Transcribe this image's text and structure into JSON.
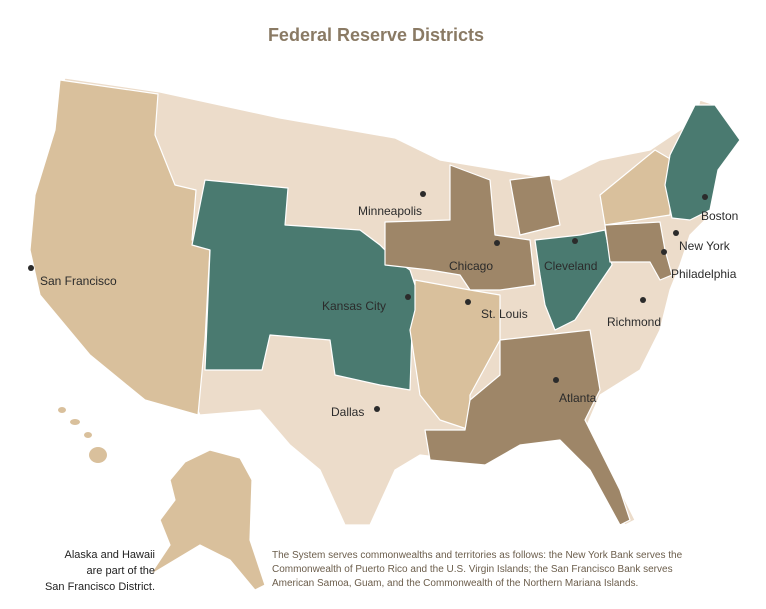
{
  "title": "Federal Reserve Districts",
  "cities": [
    {
      "name": "Boston"
    },
    {
      "name": "New York"
    },
    {
      "name": "Philadelphia"
    },
    {
      "name": "Cleveland"
    },
    {
      "name": "Richmond"
    },
    {
      "name": "Atlanta"
    },
    {
      "name": "Chicago"
    },
    {
      "name": "St. Louis"
    },
    {
      "name": "Minneapolis"
    },
    {
      "name": "Kansas City"
    },
    {
      "name": "Dallas"
    },
    {
      "name": "San Francisco"
    }
  ],
  "alaska_note": [
    "Alaska and Hawaii",
    "are part of the",
    "San Francisco District."
  ],
  "footnote": [
    "The System serves commonwealths and territories as follows: the New York Bank serves the",
    "Commonwealth of Puerto Rico and the U.S. Virgin  Islands; the San Francisco Bank serves",
    "American Samoa, Guam, and the Commonwealth of the Northern Mariana Islands."
  ]
}
